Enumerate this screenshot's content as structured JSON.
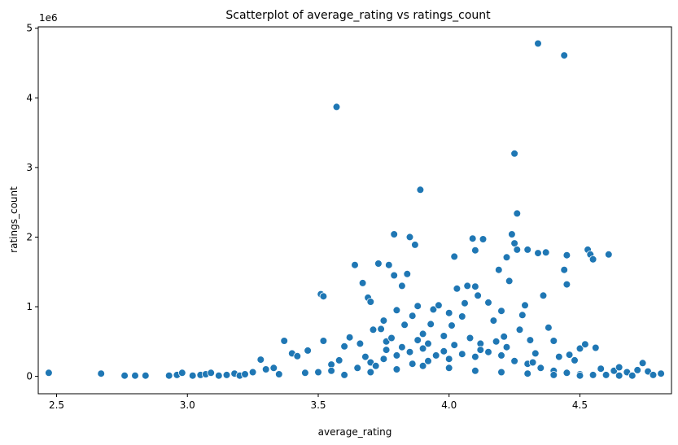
{
  "chart_data": {
    "type": "scatter",
    "title": "Scatterplot of average_rating vs ratings_count",
    "xlabel": "average_rating",
    "ylabel": "ratings_count",
    "y_offset_label": "1e6",
    "xlim": [
      2.43,
      4.85
    ],
    "ylim": [
      -0.25,
      5.02
    ],
    "y_scale_factor": 1000000,
    "x_ticks": [
      2.5,
      3.0,
      3.5,
      4.0,
      4.5
    ],
    "x_tick_labels": [
      "2.5",
      "3.0",
      "3.5",
      "4.0",
      "4.5"
    ],
    "y_ticks": [
      0,
      1,
      2,
      3,
      4,
      5
    ],
    "y_tick_labels": [
      "0",
      "1",
      "2",
      "3",
      "4",
      "5"
    ],
    "grid": false,
    "legend": "none",
    "series": [
      {
        "color": "#1f77b4",
        "points": [
          [
            2.47,
            0.05
          ],
          [
            2.67,
            0.04
          ],
          [
            2.76,
            0.01
          ],
          [
            2.8,
            0.01
          ],
          [
            2.84,
            0.01
          ],
          [
            2.93,
            0.01
          ],
          [
            2.96,
            0.02
          ],
          [
            2.98,
            0.05
          ],
          [
            3.02,
            0.01
          ],
          [
            3.05,
            0.02
          ],
          [
            3.07,
            0.03
          ],
          [
            3.09,
            0.05
          ],
          [
            3.12,
            0.01
          ],
          [
            3.15,
            0.02
          ],
          [
            3.18,
            0.04
          ],
          [
            3.2,
            0.01
          ],
          [
            3.22,
            0.03
          ],
          [
            3.25,
            0.06
          ],
          [
            3.28,
            0.24
          ],
          [
            3.3,
            0.1
          ],
          [
            3.33,
            0.12
          ],
          [
            3.37,
            0.51
          ],
          [
            3.4,
            0.33
          ],
          [
            3.42,
            0.29
          ],
          [
            3.46,
            0.37
          ],
          [
            3.5,
            0.06
          ],
          [
            3.51,
            1.18
          ],
          [
            3.52,
            1.15
          ],
          [
            3.52,
            0.51
          ],
          [
            3.55,
            0.17
          ],
          [
            3.57,
            3.87
          ],
          [
            3.58,
            0.23
          ],
          [
            3.6,
            0.43
          ],
          [
            3.62,
            0.56
          ],
          [
            3.64,
            1.6
          ],
          [
            3.66,
            0.47
          ],
          [
            3.67,
            1.34
          ],
          [
            3.69,
            1.13
          ],
          [
            3.7,
            1.07
          ],
          [
            3.71,
            0.67
          ],
          [
            3.73,
            1.62
          ],
          [
            3.74,
            0.68
          ],
          [
            3.75,
            0.8
          ],
          [
            3.76,
            0.5
          ],
          [
            3.77,
            1.6
          ],
          [
            3.79,
            1.45
          ],
          [
            3.79,
            2.04
          ],
          [
            3.8,
            0.95
          ],
          [
            3.82,
            1.3
          ],
          [
            3.83,
            0.74
          ],
          [
            3.84,
            1.47
          ],
          [
            3.85,
            2.0
          ],
          [
            3.86,
            0.87
          ],
          [
            3.87,
            1.89
          ],
          [
            3.88,
            1.01
          ],
          [
            3.89,
            2.68
          ],
          [
            3.9,
            0.61
          ],
          [
            3.92,
            0.47
          ],
          [
            3.93,
            0.75
          ],
          [
            3.94,
            0.96
          ],
          [
            3.96,
            1.02
          ],
          [
            3.98,
            0.36
          ],
          [
            4.0,
            0.91
          ],
          [
            4.01,
            0.73
          ],
          [
            4.02,
            1.72
          ],
          [
            4.03,
            1.26
          ],
          [
            4.05,
            0.86
          ],
          [
            4.06,
            1.05
          ],
          [
            4.07,
            1.3
          ],
          [
            4.09,
            1.98
          ],
          [
            4.1,
            1.81
          ],
          [
            4.1,
            1.29
          ],
          [
            4.11,
            1.16
          ],
          [
            4.12,
            0.47
          ],
          [
            4.13,
            1.97
          ],
          [
            4.15,
            1.06
          ],
          [
            4.17,
            0.8
          ],
          [
            4.19,
            1.53
          ],
          [
            4.2,
            0.94
          ],
          [
            4.21,
            0.57
          ],
          [
            4.22,
            1.71
          ],
          [
            4.23,
            1.37
          ],
          [
            4.24,
            2.04
          ],
          [
            4.25,
            1.91
          ],
          [
            4.25,
            3.2
          ],
          [
            4.26,
            2.34
          ],
          [
            4.26,
            1.82
          ],
          [
            4.27,
            0.67
          ],
          [
            4.28,
            0.88
          ],
          [
            4.29,
            1.02
          ],
          [
            4.3,
            1.82
          ],
          [
            4.31,
            0.52
          ],
          [
            4.33,
            0.33
          ],
          [
            4.34,
            1.77
          ],
          [
            4.34,
            4.78
          ],
          [
            4.36,
            1.16
          ],
          [
            4.37,
            1.78
          ],
          [
            4.38,
            0.7
          ],
          [
            4.4,
            0.51
          ],
          [
            4.42,
            0.28
          ],
          [
            4.44,
            4.61
          ],
          [
            4.44,
            1.53
          ],
          [
            4.45,
            1.74
          ],
          [
            4.45,
            1.32
          ],
          [
            4.46,
            0.31
          ],
          [
            4.48,
            0.23
          ],
          [
            4.5,
            0.4
          ],
          [
            4.52,
            0.46
          ],
          [
            4.53,
            1.82
          ],
          [
            4.54,
            1.75
          ],
          [
            4.55,
            1.68
          ],
          [
            4.56,
            0.41
          ],
          [
            4.58,
            0.11
          ],
          [
            4.61,
            1.75
          ],
          [
            4.63,
            0.08
          ],
          [
            4.65,
            0.13
          ],
          [
            4.68,
            0.06
          ],
          [
            4.72,
            0.09
          ],
          [
            4.74,
            0.19
          ],
          [
            4.76,
            0.07
          ],
          [
            4.78,
            0.02
          ],
          [
            4.81,
            0.04
          ],
          [
            3.35,
            0.03
          ],
          [
            3.45,
            0.05
          ],
          [
            3.55,
            0.08
          ],
          [
            3.65,
            0.12
          ],
          [
            3.7,
            0.2
          ],
          [
            3.75,
            0.25
          ],
          [
            3.8,
            0.3
          ],
          [
            3.85,
            0.35
          ],
          [
            3.9,
            0.4
          ],
          [
            3.95,
            0.3
          ],
          [
            4.0,
            0.25
          ],
          [
            4.05,
            0.32
          ],
          [
            4.1,
            0.28
          ],
          [
            4.15,
            0.35
          ],
          [
            4.2,
            0.3
          ],
          [
            4.25,
            0.22
          ],
          [
            4.3,
            0.18
          ],
          [
            4.35,
            0.12
          ],
          [
            4.4,
            0.08
          ],
          [
            4.45,
            0.05
          ],
          [
            4.5,
            0.03
          ],
          [
            4.55,
            0.02
          ],
          [
            4.6,
            0.02
          ],
          [
            4.65,
            0.01
          ],
          [
            4.7,
            0.01
          ],
          [
            3.6,
            0.02
          ],
          [
            3.7,
            0.06
          ],
          [
            3.8,
            0.1
          ],
          [
            3.9,
            0.15
          ],
          [
            4.0,
            0.12
          ],
          [
            4.1,
            0.08
          ],
          [
            4.2,
            0.06
          ],
          [
            4.3,
            0.04
          ],
          [
            4.4,
            0.02
          ],
          [
            4.5,
            0.01
          ],
          [
            3.78,
            0.55
          ],
          [
            3.88,
            0.52
          ],
          [
            3.98,
            0.58
          ],
          [
            4.08,
            0.55
          ],
          [
            4.18,
            0.5
          ],
          [
            3.72,
            0.15
          ],
          [
            3.82,
            0.42
          ],
          [
            3.92,
            0.22
          ],
          [
            4.02,
            0.45
          ],
          [
            4.12,
            0.38
          ],
          [
            4.22,
            0.42
          ],
          [
            4.32,
            0.2
          ],
          [
            3.68,
            0.28
          ],
          [
            3.76,
            0.38
          ],
          [
            3.86,
            0.18
          ]
        ]
      }
    ]
  }
}
